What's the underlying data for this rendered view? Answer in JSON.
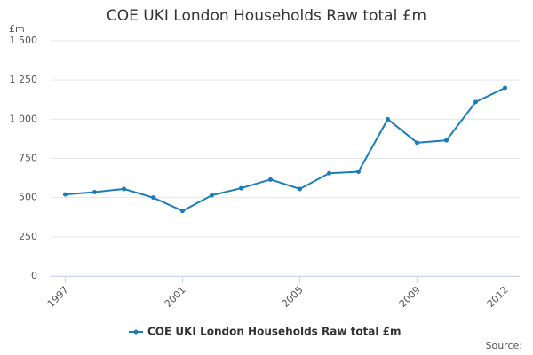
{
  "chart_data": {
    "type": "line",
    "title": "COE UKI London Households Raw total £m",
    "y_label": "£m",
    "source": "Source:",
    "categories": [
      "1997",
      null,
      null,
      null,
      "2001",
      null,
      null,
      null,
      "2005",
      null,
      null,
      null,
      "2009",
      null,
      null,
      "2012"
    ],
    "series": [
      {
        "name": "COE UKI London Households Raw total £m",
        "color": "#1a7dba",
        "values": [
          520,
          535,
          555,
          500,
          415,
          515,
          560,
          615,
          555,
          655,
          665,
          1000,
          850,
          865,
          1110,
          1200
        ]
      }
    ],
    "ylim": [
      0,
      1500
    ],
    "yticks": [
      0,
      250,
      500,
      750,
      {
        "value": 1000,
        "label": "1 000"
      },
      {
        "value": 1250,
        "label": "1 250"
      },
      {
        "value": 1500,
        "label": "1 500"
      }
    ],
    "grid": true,
    "legend": "bottom"
  }
}
